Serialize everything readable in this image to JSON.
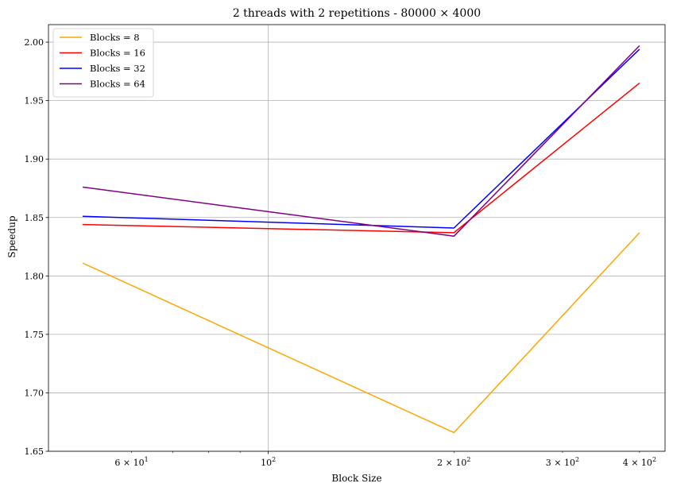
{
  "chart_data": {
    "type": "line",
    "title": "2 threads with 2 repetitions - 80000 × 4000",
    "xlabel": "Block Size",
    "ylabel": "Speedup",
    "xscale": "log",
    "x": [
      50,
      200,
      400
    ],
    "xlim": [
      44,
      440
    ],
    "ylim": [
      1.65,
      2.015
    ],
    "grid": "major",
    "legend_loc": "upper-left",
    "x_major_ticks": [
      {
        "value": 100,
        "label": "10",
        "exp": "2"
      }
    ],
    "x_minor_ticks": [
      {
        "value": 60,
        "label": "6 × 10",
        "exp": "1"
      },
      {
        "value": 200,
        "label": "2 × 10",
        "exp": "2"
      },
      {
        "value": 300,
        "label": "3 × 10",
        "exp": "2"
      },
      {
        "value": 400,
        "label": "4 × 10",
        "exp": "2"
      }
    ],
    "x_minor_unlabeled": [
      70,
      80,
      90
    ],
    "y_ticks": [
      {
        "value": 1.65,
        "label": "1.65"
      },
      {
        "value": 1.7,
        "label": "1.70"
      },
      {
        "value": 1.75,
        "label": "1.75"
      },
      {
        "value": 1.8,
        "label": "1.80"
      },
      {
        "value": 1.85,
        "label": "1.85"
      },
      {
        "value": 1.9,
        "label": "1.90"
      },
      {
        "value": 1.95,
        "label": "1.95"
      },
      {
        "value": 2.0,
        "label": "2.00"
      }
    ],
    "series": [
      {
        "name": "Blocks = 8",
        "color": "#ffa500",
        "values": [
          1.811,
          1.666,
          1.837
        ]
      },
      {
        "name": "Blocks = 16",
        "color": "#ff0000",
        "values": [
          1.844,
          1.837,
          1.965
        ]
      },
      {
        "name": "Blocks = 32",
        "color": "#0000ff",
        "values": [
          1.851,
          1.841,
          1.994
        ]
      },
      {
        "name": "Blocks = 64",
        "color": "#800080",
        "values": [
          1.876,
          1.834,
          1.997
        ]
      }
    ]
  }
}
